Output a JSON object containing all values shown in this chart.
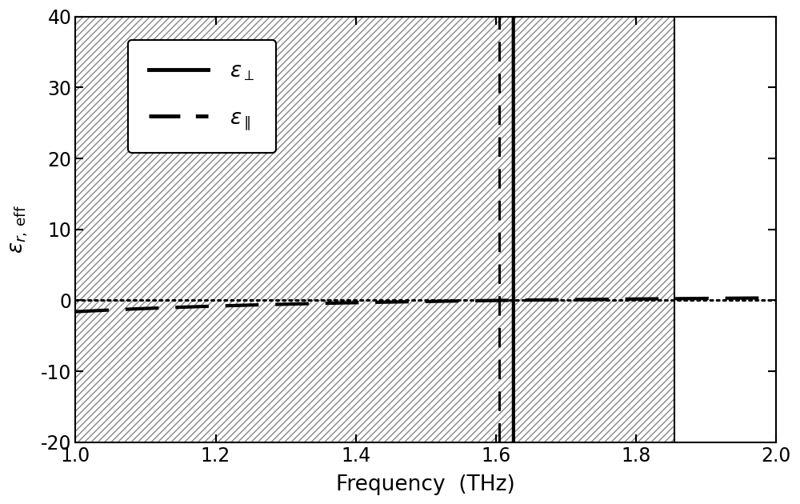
{
  "xlim": [
    1.0,
    2.0
  ],
  "ylim": [
    -20,
    40
  ],
  "xlabel": "Frequency  (THz)",
  "yticks": [
    -20,
    -10,
    0,
    10,
    20,
    30,
    40
  ],
  "xticks": [
    1.0,
    1.2,
    1.4,
    1.6,
    1.8,
    2.0
  ],
  "vline_dashed_x": 1.605,
  "vline_solid_x": 1.855,
  "hatch_xlim": [
    1.0,
    1.855
  ],
  "line_color": "black",
  "linewidth": 3.0,
  "eps_perp_params": {
    "eps_inf": 9.0,
    "delta_eps": 500.0,
    "f0": 1.625,
    "gamma": 0.012
  },
  "eps_par_params": {
    "fp": 1.61,
    "gamma_p": 0.02,
    "eps_b": 1.0
  }
}
